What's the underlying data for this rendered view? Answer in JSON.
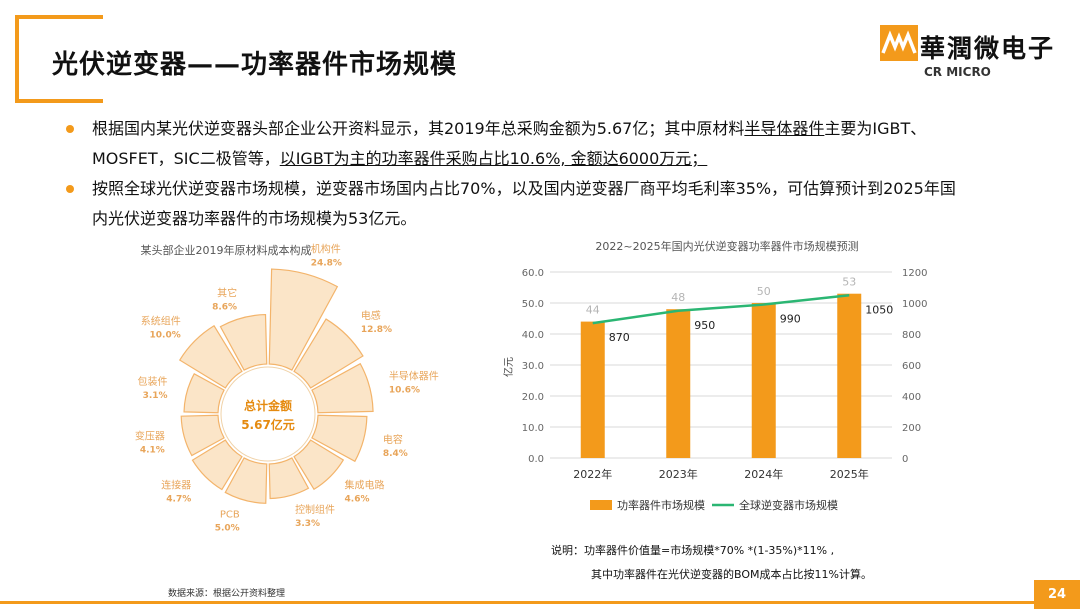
{
  "slide": {
    "title": "光伏逆变器——功率器件市场规模",
    "page_number": "24",
    "logo": {
      "cn": "華潤微电子",
      "en": "CR MICRO"
    },
    "bullets": [
      {
        "parts": [
          {
            "text": "根据国内某光伏逆变器头部企业公开资料显示，其2019年总采购金额为5.67亿；其中原材料",
            "u": false
          },
          {
            "text": "半导体器件",
            "u": true
          },
          {
            "text": "主要为IGBT、MOSFET，SIC二极管等，",
            "u": false
          },
          {
            "text": "以IGBT为主的功率器件采购占比10.6%, 金额达6000万元；",
            "u": true
          }
        ]
      },
      {
        "parts": [
          {
            "text": "按照全球光伏逆变器市场规模，逆变器市场国内占比70%，以及国内逆变器厂商平均毛利率35%，可估算预计到2025年国内光伏逆变器功率器件的市场规模为53亿元。",
            "u": false
          }
        ]
      }
    ],
    "source": "数据来源：根据公开资料整理",
    "note_line1": "说明：功率器件价值量=市场规模*70% *(1-35%)*11% ,",
    "note_line2": "其中功率器件在光伏逆变器的BOM成本占比按11%计算。",
    "colors": {
      "accent": "#f39a1b",
      "pie_fill": "#fbe5c8",
      "pie_stroke": "#f3b46b",
      "line": "#2bb673"
    }
  },
  "chart_data": [
    {
      "type": "pie",
      "title": "某头部企业2019年原材料成本构成",
      "center_label_1": "总计金额",
      "center_label_2": "5.67亿元",
      "slices": [
        {
          "label": "机构件",
          "value": 24.8,
          "value_text": "24.8%"
        },
        {
          "label": "电感",
          "value": 12.8,
          "value_text": "12.8%"
        },
        {
          "label": "半导体器件",
          "value": 10.6,
          "value_text": "10.6%"
        },
        {
          "label": "电容",
          "value": 8.4,
          "value_text": "8.4%"
        },
        {
          "label": "集成电路",
          "value": 4.6,
          "value_text": "4.6%"
        },
        {
          "label": "控制组件",
          "value": 3.3,
          "value_text": "3.3%"
        },
        {
          "label": "PCB",
          "value": 5.0,
          "value_text": "5.0%"
        },
        {
          "label": "连接器",
          "value": 4.7,
          "value_text": "4.7%"
        },
        {
          "label": "变压器",
          "value": 4.1,
          "value_text": "4.1%"
        },
        {
          "label": "包装件",
          "value": 3.1,
          "value_text": "3.1%"
        },
        {
          "label": "系统组件",
          "value": 10.0,
          "value_text": "10.0%"
        },
        {
          "label": "其它",
          "value": 8.6,
          "value_text": "8.6%"
        }
      ]
    },
    {
      "type": "bar",
      "title": "2022~2025年国内光伏逆变器功率器件市场规模预测",
      "categories": [
        "2022年",
        "2023年",
        "2024年",
        "2025年"
      ],
      "ylabel": "亿元",
      "ylim": [
        0,
        60
      ],
      "yticks": [
        "0.0",
        "10.0",
        "20.0",
        "30.0",
        "40.0",
        "50.0",
        "60.0"
      ],
      "y2lim": [
        0,
        1200
      ],
      "y2ticks": [
        "0",
        "200",
        "400",
        "600",
        "800",
        "1000",
        "1200"
      ],
      "series": [
        {
          "name": "功率器件市场规模",
          "type": "bar",
          "axis": "left",
          "values": [
            44,
            48,
            50,
            53
          ]
        },
        {
          "name": "全球逆变器市场规模",
          "type": "line",
          "axis": "right",
          "values": [
            870,
            950,
            990,
            1050
          ]
        }
      ],
      "grid": true,
      "legend": "bottom"
    }
  ]
}
